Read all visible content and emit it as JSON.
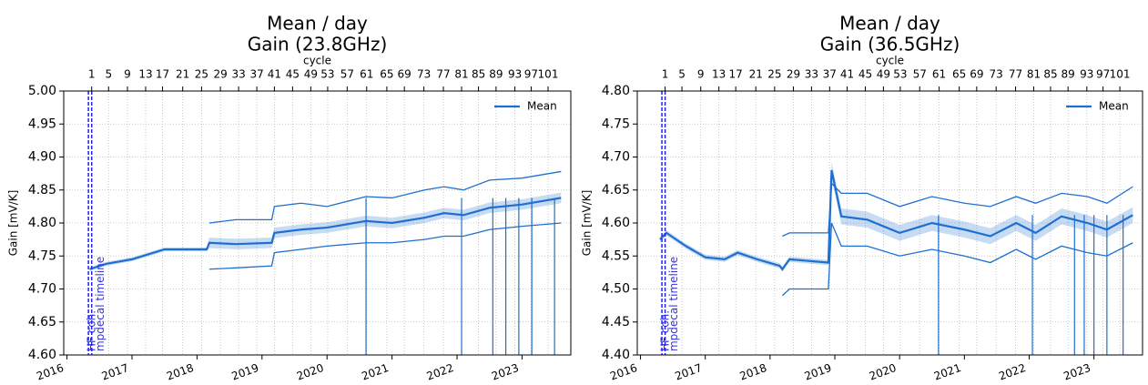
{
  "chart_data": [
    {
      "type": "line",
      "title": "Mean / day",
      "subtitle": "Gain (23.8GHz)",
      "x2_label": "cycle",
      "ylabel": "Gain [mV/K]",
      "xlim": [
        2015.95,
        2023.75
      ],
      "xticks": [
        2016,
        2017,
        2018,
        2019,
        2020,
        2021,
        2022,
        2023
      ],
      "x2ticks": [
        {
          "value": 2016.38,
          "label": "1"
        },
        {
          "value": 2016.64,
          "label": "5"
        },
        {
          "value": 2016.93,
          "label": "9"
        },
        {
          "value": 2017.21,
          "label": "13"
        },
        {
          "value": 2017.47,
          "label": "17"
        },
        {
          "value": 2017.78,
          "label": "21"
        },
        {
          "value": 2018.07,
          "label": "25"
        },
        {
          "value": 2018.36,
          "label": "29"
        },
        {
          "value": 2018.64,
          "label": "33"
        },
        {
          "value": 2018.92,
          "label": "37"
        },
        {
          "value": 2019.19,
          "label": "41"
        },
        {
          "value": 2019.47,
          "label": "45"
        },
        {
          "value": 2019.75,
          "label": "49"
        },
        {
          "value": 2020.01,
          "label": "53"
        },
        {
          "value": 2020.31,
          "label": "57"
        },
        {
          "value": 2020.61,
          "label": "61"
        },
        {
          "value": 2020.92,
          "label": "65"
        },
        {
          "value": 2021.19,
          "label": "69"
        },
        {
          "value": 2021.49,
          "label": "73"
        },
        {
          "value": 2021.79,
          "label": "77"
        },
        {
          "value": 2022.07,
          "label": "81"
        },
        {
          "value": 2022.33,
          "label": "85"
        },
        {
          "value": 2022.6,
          "label": "89"
        },
        {
          "value": 2022.89,
          "label": "93"
        },
        {
          "value": 2023.14,
          "label": "97"
        },
        {
          "value": 2023.4,
          "label": "101"
        }
      ],
      "ylim": [
        4.6,
        5.0
      ],
      "yticks": [
        {
          "value": 4.6,
          "label": "4.60"
        },
        4.65,
        {
          "value": 4.7,
          "label": "4.70"
        },
        4.75,
        {
          "value": 4.8,
          "label": "4.80"
        },
        4.85,
        {
          "value": 4.9,
          "label": "4.90"
        },
        4.95,
        {
          "value": 5.0,
          "label": "5.00"
        }
      ],
      "grid": true,
      "legend": "upper right",
      "vlines": [
        {
          "x": 2016.33,
          "label": "HF coh."
        },
        {
          "x": 2016.38,
          "label": "mpdecal timeline"
        }
      ],
      "x": [
        2016.35,
        2016.6,
        2017,
        2017.5,
        2018.15,
        2018.19,
        2018.6,
        2019.15,
        2019.19,
        2019.6,
        2020,
        2020.6,
        2021,
        2021.5,
        2021.8,
        2022.1,
        2022.5,
        2023,
        2023.6
      ],
      "series": [
        {
          "name": "Mean",
          "color": "#1f6fd0",
          "values": [
            4.73,
            4.738,
            4.745,
            4.76,
            4.76,
            4.77,
            4.768,
            4.77,
            4.785,
            4.79,
            4.793,
            4.803,
            4.8,
            4.808,
            4.815,
            4.812,
            4.823,
            4.828,
            4.838
          ],
          "errors": [
            0.003,
            0.003,
            0.003,
            0.003,
            0.003,
            0.008,
            0.008,
            0.008,
            0.008,
            0.008,
            0.008,
            0.008,
            0.008,
            0.008,
            0.008,
            0.008,
            0.008,
            0.008,
            0.008
          ]
        }
      ],
      "upper": [
        null,
        null,
        null,
        null,
        null,
        4.8,
        4.805,
        4.805,
        4.825,
        4.83,
        4.825,
        4.84,
        4.838,
        4.85,
        4.855,
        4.85,
        4.865,
        4.868,
        4.878
      ],
      "lower": [
        null,
        null,
        null,
        null,
        null,
        4.73,
        4.732,
        4.735,
        4.755,
        4.76,
        4.765,
        4.77,
        4.77,
        4.775,
        4.78,
        4.78,
        4.79,
        4.795,
        4.8
      ],
      "spikes": [
        2020.6,
        2022.07,
        2022.55,
        2022.75,
        2022.95,
        2023.15,
        2023.5
      ]
    },
    {
      "type": "line",
      "title": "Mean / day",
      "subtitle": "Gain (36.5GHz)",
      "x2_label": "cycle",
      "ylabel": "Gain [mV/K]",
      "xlim": [
        2015.95,
        2023.75
      ],
      "xticks": [
        2016,
        2017,
        2018,
        2019,
        2020,
        2021,
        2022,
        2023
      ],
      "x2ticks": [
        {
          "value": 2016.38,
          "label": "1"
        },
        {
          "value": 2016.64,
          "label": "5"
        },
        {
          "value": 2016.93,
          "label": "9"
        },
        {
          "value": 2017.21,
          "label": "13"
        },
        {
          "value": 2017.47,
          "label": "17"
        },
        {
          "value": 2017.78,
          "label": "21"
        },
        {
          "value": 2018.07,
          "label": "25"
        },
        {
          "value": 2018.36,
          "label": "29"
        },
        {
          "value": 2018.64,
          "label": "33"
        },
        {
          "value": 2018.92,
          "label": "37"
        },
        {
          "value": 2019.19,
          "label": "41"
        },
        {
          "value": 2019.47,
          "label": "45"
        },
        {
          "value": 2019.75,
          "label": "49"
        },
        {
          "value": 2020.01,
          "label": "53"
        },
        {
          "value": 2020.31,
          "label": "57"
        },
        {
          "value": 2020.61,
          "label": "61"
        },
        {
          "value": 2020.92,
          "label": "65"
        },
        {
          "value": 2021.19,
          "label": "69"
        },
        {
          "value": 2021.49,
          "label": "73"
        },
        {
          "value": 2021.79,
          "label": "77"
        },
        {
          "value": 2022.07,
          "label": "81"
        },
        {
          "value": 2022.33,
          "label": "85"
        },
        {
          "value": 2022.6,
          "label": "89"
        },
        {
          "value": 2022.89,
          "label": "93"
        },
        {
          "value": 2023.14,
          "label": "97"
        },
        {
          "value": 2023.4,
          "label": "101"
        }
      ],
      "ylim": [
        4.4,
        4.8
      ],
      "yticks": [
        {
          "value": 4.4,
          "label": "4.40"
        },
        4.45,
        {
          "value": 4.5,
          "label": "4.50"
        },
        4.55,
        {
          "value": 4.6,
          "label": "4.60"
        },
        4.65,
        {
          "value": 4.7,
          "label": "4.70"
        },
        4.75,
        {
          "value": 4.8,
          "label": "4.80"
        }
      ],
      "grid": true,
      "legend": "upper right",
      "vlines": [
        {
          "x": 2016.33,
          "label": "HF coh."
        },
        {
          "x": 2016.38,
          "label": "mpdecal timeline"
        }
      ],
      "x": [
        2016.3,
        2016.4,
        2016.7,
        2017,
        2017.3,
        2017.5,
        2017.8,
        2018.15,
        2018.19,
        2018.3,
        2018.9,
        2018.95,
        2019.1,
        2019.5,
        2020,
        2020.5,
        2021,
        2021.4,
        2021.8,
        2022.1,
        2022.5,
        2022.9,
        2023.2,
        2023.6
      ],
      "series": [
        {
          "name": "Mean",
          "color": "#1f6fd0",
          "values": [
            4.575,
            4.585,
            4.565,
            4.548,
            4.545,
            4.555,
            4.545,
            4.535,
            4.53,
            4.545,
            4.54,
            4.68,
            4.61,
            4.605,
            4.585,
            4.6,
            4.59,
            4.58,
            4.6,
            4.585,
            4.61,
            4.6,
            4.59,
            4.612
          ],
          "errors": [
            0.004,
            0.004,
            0.004,
            0.004,
            0.004,
            0.004,
            0.004,
            0.004,
            0.004,
            0.004,
            0.004,
            0.012,
            0.012,
            0.012,
            0.012,
            0.012,
            0.012,
            0.012,
            0.012,
            0.012,
            0.012,
            0.012,
            0.012,
            0.012
          ]
        }
      ],
      "upper": [
        null,
        null,
        null,
        null,
        null,
        null,
        null,
        null,
        4.58,
        4.585,
        4.585,
        4.66,
        4.645,
        4.645,
        4.625,
        4.64,
        4.63,
        4.625,
        4.64,
        4.63,
        4.645,
        4.64,
        4.63,
        4.655
      ],
      "lower": [
        null,
        null,
        null,
        null,
        null,
        null,
        null,
        null,
        4.49,
        4.5,
        4.5,
        4.6,
        4.565,
        4.565,
        4.55,
        4.56,
        4.55,
        4.54,
        4.56,
        4.545,
        4.565,
        4.555,
        4.55,
        4.57
      ],
      "spikes": [
        2020.6,
        2022.05,
        2022.7,
        2022.85,
        2023.0,
        2023.2,
        2023.45
      ]
    }
  ]
}
